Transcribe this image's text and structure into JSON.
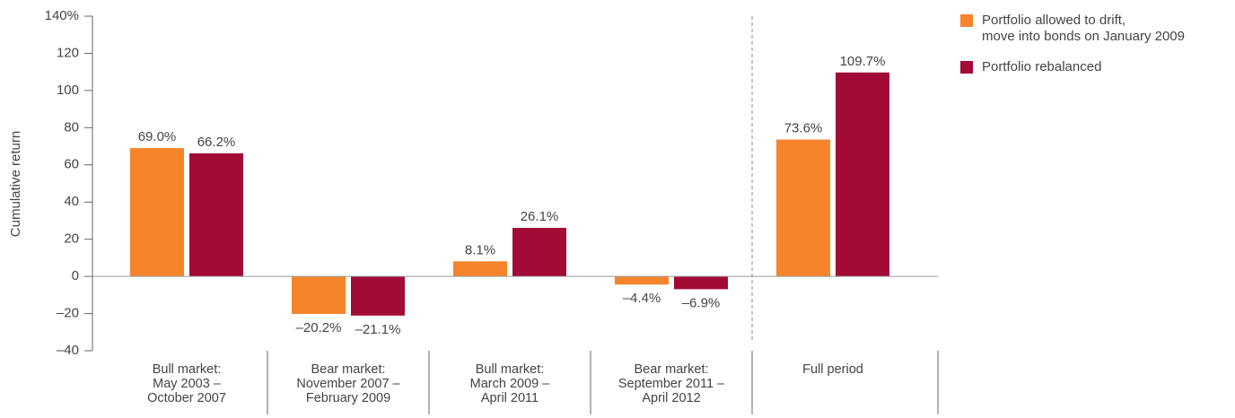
{
  "chart_data": {
    "type": "bar",
    "y_label": "Cumulative return",
    "categories": [
      "Bull market:\nMay 2003 –\nOctober 2007",
      "Bear market:\nNovember 2007 –\nFebruary 2009",
      "Bull market:\nMarch 2009 –\nApril 2011",
      "Bear market:\nSeptember 2011 –\nApril 2012",
      "Full period"
    ],
    "series": [
      {
        "name": "Portfolio allowed to drift,\nmove into bonds on January 2009",
        "color": "#f5842a",
        "values": [
          69.0,
          -20.2,
          8.1,
          -4.4,
          73.6
        ],
        "value_labels": [
          "69.0%",
          "–20.2%",
          "8.1%",
          "–4.4%",
          "73.6%"
        ]
      },
      {
        "name": "Portfolio rebalanced",
        "color": "#a30b37",
        "values": [
          66.2,
          -21.1,
          26.1,
          -6.9,
          109.7
        ],
        "value_labels": [
          "66.2%",
          "–21.1%",
          "26.1%",
          "–6.9%",
          "109.7%"
        ]
      }
    ],
    "ylim": [
      -40,
      140
    ],
    "yticks": [
      {
        "value": -40,
        "label": "–40"
      },
      {
        "value": -20,
        "label": "–20"
      },
      0,
      20,
      40,
      60,
      80,
      100,
      120,
      {
        "value": 140,
        "label": "140%"
      }
    ],
    "legend": "upper right",
    "grid": false
  }
}
